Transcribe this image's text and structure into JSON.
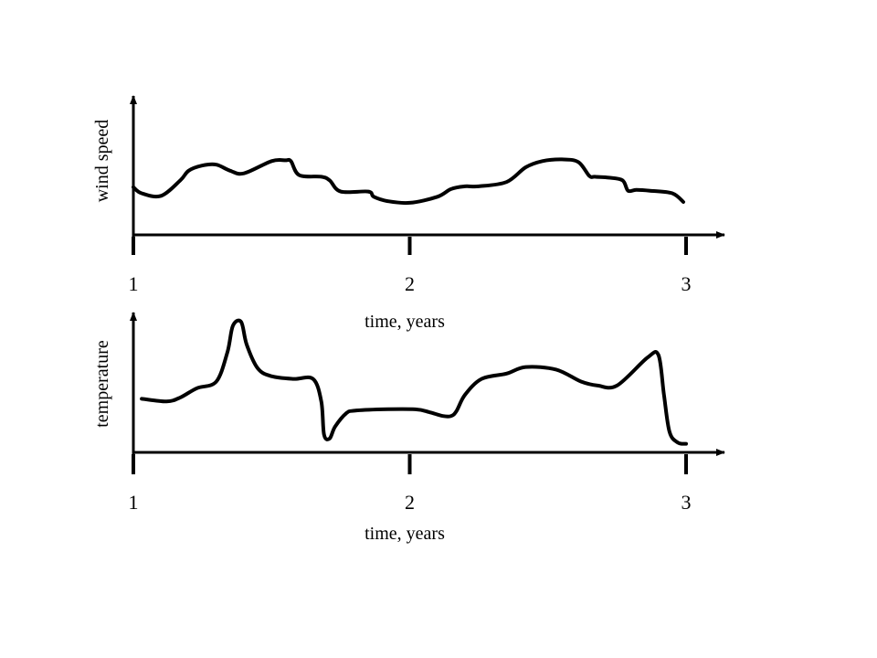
{
  "colors": {
    "stroke": "#000000",
    "background": "#ffffff"
  },
  "chart_data": [
    {
      "type": "line",
      "title": "",
      "xlabel": "time, years",
      "ylabel": "wind speed",
      "xlim": [
        1,
        3
      ],
      "ylim": [
        0,
        1
      ],
      "xticks": [
        1,
        2,
        3
      ],
      "xtick_labels": [
        "1",
        "2",
        "3"
      ],
      "grid": false,
      "legend": "none",
      "series": [
        {
          "x": [
            1.0,
            1.03,
            1.1,
            1.17,
            1.2,
            1.25,
            1.3,
            1.35,
            1.4,
            1.5,
            1.55,
            1.57,
            1.6,
            1.68,
            1.71,
            1.75,
            1.85,
            1.87,
            1.92,
            2.0,
            2.1,
            2.15,
            2.2,
            2.25,
            2.35,
            2.42,
            2.48,
            2.55,
            2.61,
            2.65,
            2.67,
            2.72,
            2.77,
            2.79,
            2.82,
            2.87,
            2.95,
            2.99
          ],
          "y": [
            0.37,
            0.3,
            0.27,
            0.45,
            0.56,
            0.62,
            0.63,
            0.56,
            0.53,
            0.67,
            0.68,
            0.67,
            0.51,
            0.49,
            0.45,
            0.32,
            0.32,
            0.26,
            0.21,
            0.19,
            0.26,
            0.35,
            0.38,
            0.38,
            0.43,
            0.6,
            0.67,
            0.69,
            0.66,
            0.5,
            0.49,
            0.48,
            0.45,
            0.33,
            0.34,
            0.33,
            0.3,
            0.2
          ]
        }
      ]
    },
    {
      "type": "line",
      "title": "",
      "xlabel": "time, years",
      "ylabel": "temperature",
      "xlim": [
        1,
        3
      ],
      "ylim": [
        0,
        1
      ],
      "xticks": [
        1,
        2,
        3
      ],
      "xtick_labels": [
        "1",
        "2",
        "3"
      ],
      "grid": false,
      "legend": "none",
      "series": [
        {
          "x": [
            1.03,
            1.12,
            1.17,
            1.23,
            1.3,
            1.34,
            1.36,
            1.39,
            1.41,
            1.45,
            1.5,
            1.58,
            1.65,
            1.68,
            1.69,
            1.71,
            1.73,
            1.77,
            1.8,
            1.9,
            2.02,
            2.07,
            2.12,
            2.15,
            2.17,
            2.2,
            2.26,
            2.35,
            2.42,
            2.53,
            2.62,
            2.68,
            2.75,
            2.86,
            2.9,
            2.92,
            2.94,
            2.97,
            3.0
          ],
          "y": [
            0.37,
            0.35,
            0.38,
            0.45,
            0.5,
            0.72,
            0.92,
            0.95,
            0.78,
            0.6,
            0.54,
            0.52,
            0.52,
            0.35,
            0.1,
            0.07,
            0.16,
            0.26,
            0.28,
            0.29,
            0.29,
            0.27,
            0.24,
            0.24,
            0.28,
            0.4,
            0.52,
            0.56,
            0.61,
            0.59,
            0.5,
            0.47,
            0.47,
            0.68,
            0.7,
            0.4,
            0.12,
            0.04,
            0.03
          ]
        }
      ]
    }
  ]
}
